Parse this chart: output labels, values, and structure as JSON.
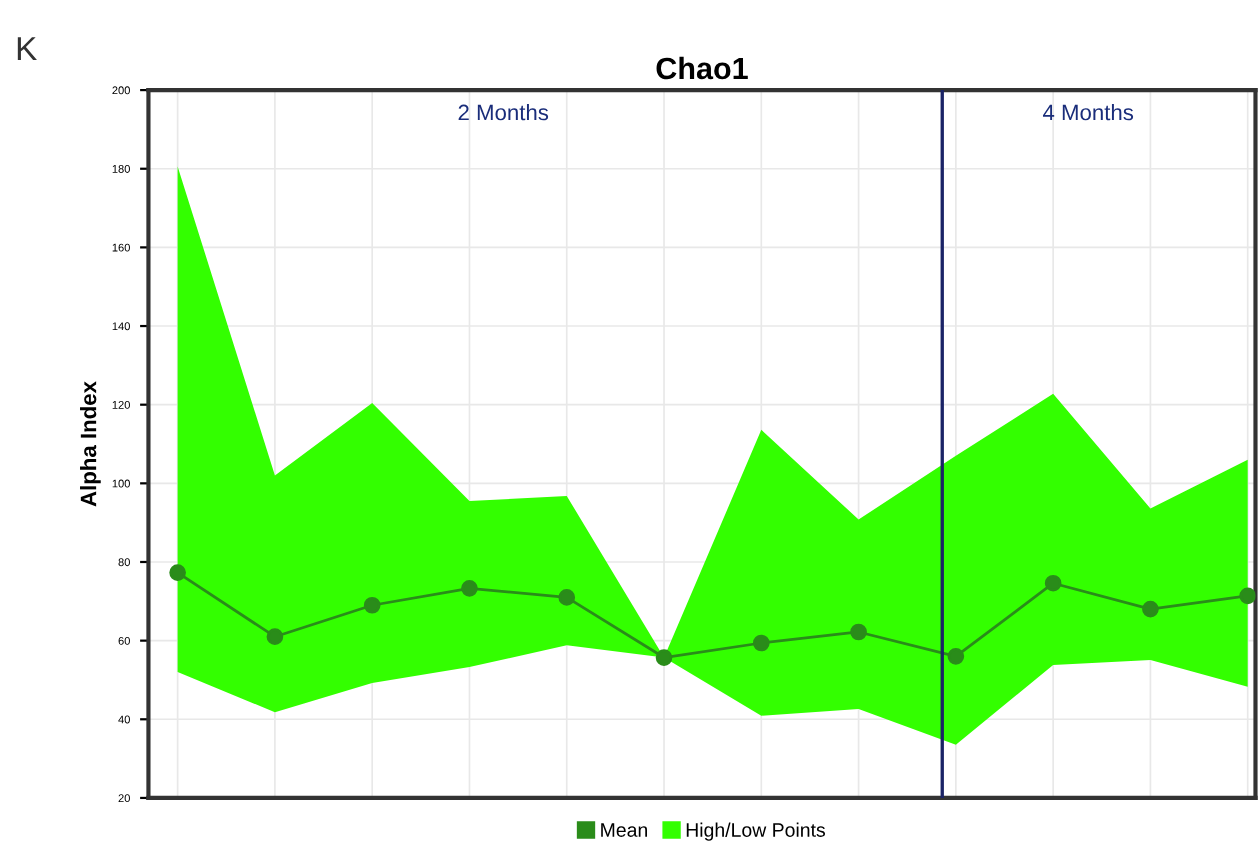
{
  "chart_data": {
    "type": "line",
    "title": "Chao1",
    "ylabel": "Alpha Index",
    "categories": [
      null,
      null,
      null,
      null,
      null,
      null,
      null,
      null,
      null,
      null,
      null,
      null
    ],
    "series": [
      {
        "name": "Mean",
        "type": "line",
        "color": "#2a8c1a",
        "marker": "circle",
        "values": [
          77.3,
          61,
          69,
          73.3,
          71,
          55.7,
          59.4,
          62.2,
          56,
          74.6,
          68,
          71.4
        ],
        "lower": [
          52,
          41.8,
          49.2,
          53.3,
          58.8,
          55.7,
          40.9,
          42.6,
          33.5,
          53.8,
          55.1,
          48.3
        ],
        "upper": [
          180.6,
          102,
          120.4,
          95.5,
          96.8,
          55.7,
          113.6,
          90.8,
          107,
          122.8,
          93.6,
          106
        ]
      },
      {
        "name": "High/Low Points",
        "type": "area",
        "color": "#33ff00",
        "values": [
          null,
          null,
          null,
          null,
          null,
          null,
          null,
          null,
          null,
          null,
          null,
          null
        ]
      }
    ],
    "ylim": [
      20,
      200
    ],
    "yticks": [
      20,
      40,
      60,
      80,
      100,
      120,
      140,
      160,
      180,
      200
    ],
    "annotations": [
      "K",
      "2 Months",
      "4 Months"
    ],
    "grid": true,
    "legend": "bottom",
    "tick_labels": "y"
  }
}
